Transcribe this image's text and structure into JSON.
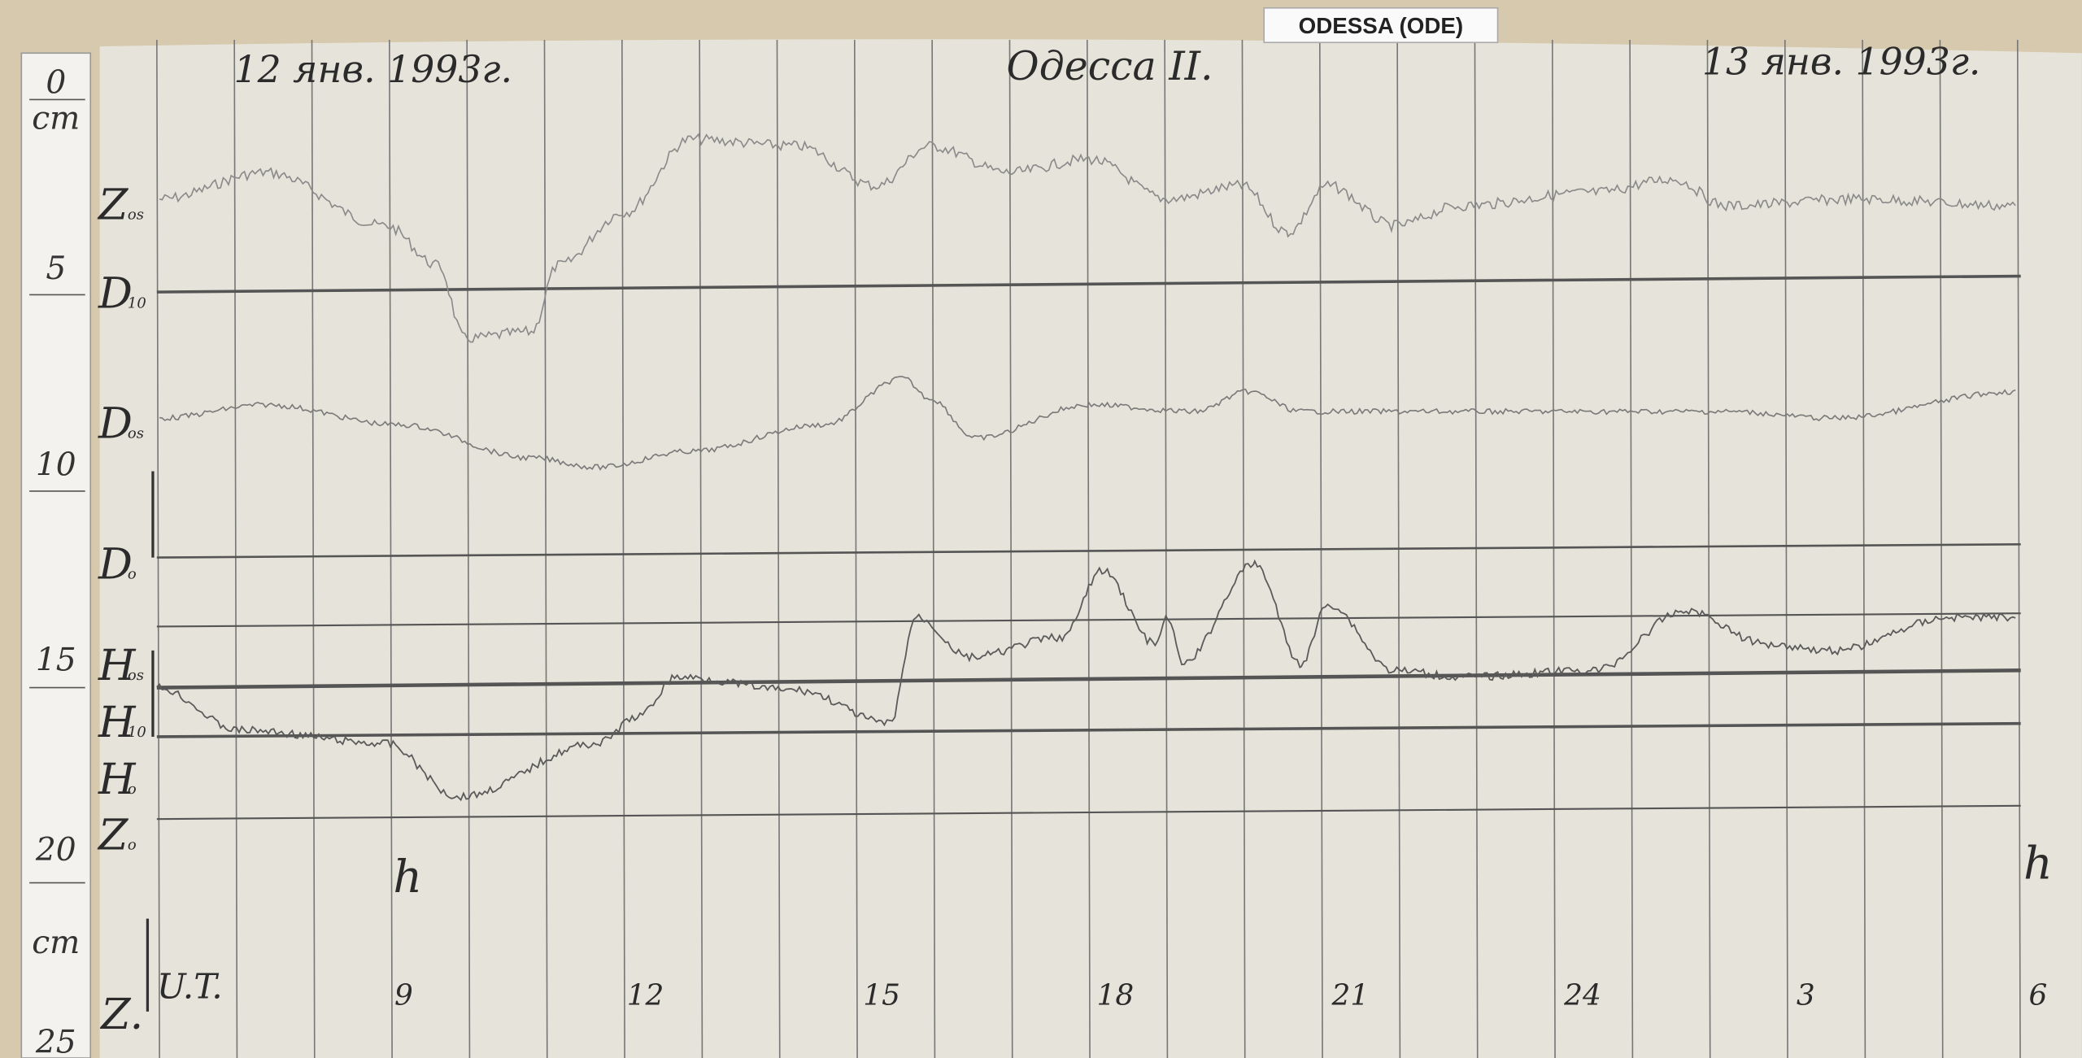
{
  "tag": "ODESSA (ODE)",
  "header": {
    "date_left": "12 янв. 1993г.",
    "station": "Одесса II.",
    "date_right": "13 янв. 1993г."
  },
  "ruler": [
    "0",
    "cm",
    "5",
    "10",
    "15",
    "20",
    "cm",
    "25"
  ],
  "trace_labels": [
    {
      "letter": "Z",
      "sub": "os"
    },
    {
      "letter": "D",
      "sub": "10"
    },
    {
      "letter": "D",
      "sub": "os"
    },
    {
      "letter": "D",
      "sub": "o"
    },
    {
      "letter": "H",
      "sub": "os"
    },
    {
      "letter": "H",
      "sub": "10"
    },
    {
      "letter": "H",
      "sub": "o"
    },
    {
      "letter": "Z",
      "sub": "o"
    }
  ],
  "hour_marks": [
    "h",
    "h"
  ],
  "time_axis": {
    "label": "U.T.",
    "component": "Z.",
    "hours": [
      "9",
      "12",
      "15",
      "18",
      "21",
      "24",
      "3",
      "6"
    ]
  }
}
